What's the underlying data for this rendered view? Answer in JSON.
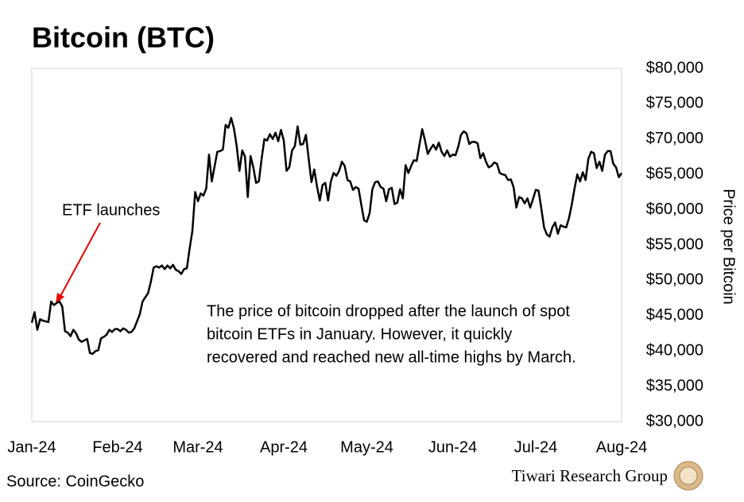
{
  "chart_data": {
    "type": "line",
    "title": "Bitcoin (BTC)",
    "y_label": "Price per Bitcoin",
    "annotation": "ETF launches",
    "note_lines": [
      "The price of bitcoin dropped after the launch of spot",
      "bitcoin ETFs in January. However, it quickly",
      "recovered and reached new all-time highs by March."
    ],
    "source": "Source: CoinGecko",
    "brand": "Tiwari Research Group",
    "ylim": [
      30000,
      80000
    ],
    "yticks": [
      {
        "value": 30000,
        "label": "$30,000"
      },
      {
        "value": 35000,
        "label": "$35,000"
      },
      {
        "value": 40000,
        "label": "$40,000"
      },
      {
        "value": 45000,
        "label": "$45,000"
      },
      {
        "value": 50000,
        "label": "$50,000"
      },
      {
        "value": 55000,
        "label": "$55,000"
      },
      {
        "value": 60000,
        "label": "$60,000"
      },
      {
        "value": 65000,
        "label": "$65,000"
      },
      {
        "value": 70000,
        "label": "$70,000"
      },
      {
        "value": 75000,
        "label": "$75,000"
      },
      {
        "value": 80000,
        "label": "$80,000"
      }
    ],
    "categories": [
      "Jan-24",
      null,
      null,
      null,
      null,
      null,
      null,
      null,
      null,
      null,
      null,
      null,
      null,
      null,
      null,
      null,
      null,
      null,
      null,
      null,
      null,
      null,
      null,
      null,
      null,
      null,
      null,
      null,
      null,
      null,
      null,
      "Feb-24",
      null,
      null,
      null,
      null,
      null,
      null,
      null,
      null,
      null,
      null,
      null,
      null,
      null,
      null,
      null,
      null,
      null,
      null,
      null,
      null,
      null,
      null,
      null,
      null,
      null,
      null,
      null,
      null,
      "Mar-24",
      null,
      null,
      null,
      null,
      null,
      null,
      null,
      null,
      null,
      null,
      null,
      null,
      null,
      null,
      null,
      null,
      null,
      null,
      null,
      null,
      null,
      null,
      null,
      null,
      null,
      null,
      null,
      null,
      null,
      null,
      "Apr-24",
      null,
      null,
      null,
      null,
      null,
      null,
      null,
      null,
      null,
      null,
      null,
      null,
      null,
      null,
      null,
      null,
      null,
      null,
      null,
      null,
      null,
      null,
      null,
      null,
      null,
      null,
      null,
      null,
      null,
      "May-24",
      null,
      null,
      null,
      null,
      null,
      null,
      null,
      null,
      null,
      null,
      null,
      null,
      null,
      null,
      null,
      null,
      null,
      null,
      null,
      null,
      null,
      null,
      null,
      null,
      null,
      null,
      null,
      null,
      null,
      null,
      "Jun-24",
      null,
      null,
      null,
      null,
      null,
      null,
      null,
      null,
      null,
      null,
      null,
      null,
      null,
      null,
      null,
      null,
      null,
      null,
      null,
      null,
      null,
      null,
      null,
      null,
      null,
      null,
      null,
      null,
      null,
      "Jul-24",
      null,
      null,
      null,
      null,
      null,
      null,
      null,
      null,
      null,
      null,
      null,
      null,
      null,
      null,
      null,
      null,
      null,
      null,
      null,
      null,
      null,
      null,
      null,
      null,
      null,
      null,
      null,
      null,
      null,
      null,
      "Aug-24"
    ],
    "series": [
      {
        "name": "Bitcoin",
        "color": "#000000",
        "values": [
          44000,
          45500,
          43000,
          44500,
          44300,
          44200,
          44100,
          47000,
          46500,
          46800,
          47000,
          46300,
          42800,
          42600,
          42100,
          43000,
          42500,
          41600,
          41300,
          41500,
          41700,
          39700,
          39600,
          40000,
          40100,
          41800,
          42000,
          42300,
          43000,
          42700,
          43100,
          43100,
          42800,
          43200,
          43000,
          42600,
          42700,
          43200,
          44200,
          45200,
          47000,
          47600,
          48200,
          49800,
          51800,
          52000,
          51800,
          52100,
          51600,
          52100,
          51700,
          52200,
          51500,
          51300,
          50900,
          51600,
          51700,
          54500,
          57000,
          62500,
          61200,
          62300,
          62000,
          63000,
          67800,
          64000,
          66100,
          68200,
          68300,
          68500,
          72000,
          71600,
          73000,
          71500,
          69000,
          65500,
          68400,
          67500,
          61800,
          67600,
          66000,
          63800,
          64000,
          67200,
          70000,
          69800,
          70700,
          70000,
          70900,
          69700,
          71300,
          69800,
          65500,
          66000,
          68400,
          69000,
          71800,
          69200,
          69300,
          70600,
          67200,
          63900,
          65700,
          63300,
          61300,
          63500,
          63800,
          61300,
          64000,
          65200,
          64800,
          65500,
          66800,
          66200,
          64200,
          64000,
          62800,
          63200,
          63000,
          60700,
          58500,
          58300,
          59500,
          62900,
          63900,
          64000,
          63200,
          63000,
          61200,
          62900,
          63100,
          60800,
          61000,
          62900,
          61600,
          66300,
          65200,
          66200,
          67000,
          66900,
          69200,
          71400,
          69800,
          67900,
          68600,
          69200,
          68500,
          69500,
          68200,
          67600,
          68400,
          67500,
          67800,
          67700,
          68900,
          70600,
          71100,
          70800,
          69300,
          69600,
          69600,
          69400,
          67300,
          68000,
          66800,
          66000,
          66200,
          66700,
          66500,
          65200,
          65000,
          64900,
          64200,
          64300,
          63200,
          60300,
          61800,
          61600,
          60900,
          61600,
          60300,
          61500,
          62800,
          62700,
          60200,
          57500,
          56500,
          56200,
          57500,
          58200,
          56600,
          57800,
          57600,
          57500,
          58800,
          60700,
          63000,
          65000,
          64000,
          65300,
          64200,
          67200,
          68200,
          68000,
          65900,
          66800,
          65500,
          67800,
          68300,
          68300,
          66500,
          66000,
          64600,
          65200
        ]
      }
    ]
  }
}
